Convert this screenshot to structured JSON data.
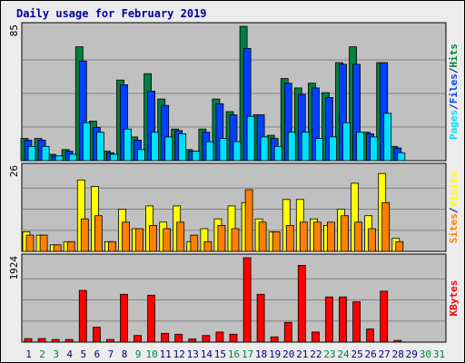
{
  "chart_data": {
    "type": "bar",
    "title": "Daily usage for February 2019",
    "categories": [
      "1",
      "2",
      "3",
      "4",
      "5",
      "6",
      "7",
      "8",
      "9",
      "10",
      "11",
      "12",
      "13",
      "14",
      "15",
      "16",
      "17",
      "18",
      "19",
      "20",
      "21",
      "22",
      "23",
      "24",
      "25",
      "26",
      "27",
      "28",
      "29",
      "30",
      "31"
    ],
    "weekend_days": [
      2,
      3,
      9,
      10,
      16,
      17,
      23,
      24,
      30,
      31
    ],
    "panels": [
      {
        "id": "hits",
        "ymax_label": "85",
        "ylim": [
          0,
          85
        ],
        "series": [
          {
            "name": "Hits",
            "color": "#008040",
            "values": [
              14,
              14,
              4,
              7,
              72,
              25,
              6,
              51,
              15,
              55,
              39,
              20,
              7,
              20,
              39,
              31,
              85,
              29,
              16,
              52,
              46,
              49,
              43,
              62,
              72,
              18,
              62,
              9,
              0,
              0,
              0
            ]
          },
          {
            "name": "Files",
            "color": "#0040ff",
            "values": [
              13,
              13,
              3,
              6,
              63,
              21,
              5,
              48,
              13,
              44,
              35,
              19,
              6,
              18,
              36,
              29,
              71,
              29,
              14,
              49,
              42,
              46,
              40,
              61,
              61,
              17,
              62,
              8,
              0,
              0,
              0
            ]
          },
          {
            "name": "Pages",
            "color": "#00e0ff",
            "values": [
              9,
              9,
              3,
              4,
              24,
              18,
              4,
              20,
              7,
              18,
              15,
              17,
              6,
              12,
              14,
              12,
              28,
              15,
              9,
              18,
              18,
              14,
              15,
              24,
              18,
              15,
              30,
              5,
              0,
              0,
              0
            ]
          }
        ],
        "axis_title": [
          {
            "text": "Pages",
            "color": "#00e0ff"
          },
          {
            "text": "/",
            "color": "#000080"
          },
          {
            "text": "Files",
            "color": "#0040ff"
          },
          {
            "text": "/",
            "color": "#000080"
          },
          {
            "text": "Hits",
            "color": "#008040"
          }
        ]
      },
      {
        "id": "visits",
        "ymax_label": "26",
        "ylim": [
          0,
          26
        ],
        "series": [
          {
            "name": "Visits",
            "color": "#ffff00",
            "values": [
              6,
              5,
              2,
              3,
              22,
              20,
              3,
              13,
              7,
              14,
              9,
              14,
              3,
              7,
              10,
              14,
              15,
              10,
              6,
              16,
              16,
              10,
              8,
              13,
              21,
              11,
              24,
              4,
              0,
              0,
              0
            ]
          },
          {
            "name": "Sites",
            "color": "#ff8000",
            "values": [
              5,
              5,
              2,
              3,
              10,
              11,
              3,
              9,
              7,
              8,
              7,
              9,
              5,
              3,
              8,
              7,
              19,
              9,
              6,
              8,
              9,
              9,
              9,
              11,
              9,
              7,
              15,
              3,
              0,
              0,
              0
            ]
          }
        ],
        "axis_title": [
          {
            "text": "Sites",
            "color": "#ff8000"
          },
          {
            "text": "/",
            "color": "#000080"
          },
          {
            "text": "Visits",
            "color": "#ffff00"
          }
        ]
      },
      {
        "id": "kbytes",
        "ymax_label": "1924",
        "ylim": [
          0,
          1924
        ],
        "series": [
          {
            "name": "KBytes",
            "color": "#ff0000",
            "values": [
              80,
              80,
              60,
              60,
              1180,
              340,
              60,
              1090,
              150,
              1070,
              200,
              180,
              70,
              150,
              230,
              180,
              1924,
              1090,
              120,
              450,
              1750,
              230,
              1030,
              1030,
              920,
              300,
              1160,
              40,
              0,
              0,
              0
            ]
          }
        ],
        "axis_title": [
          {
            "text": "KBytes",
            "color": "#ff0000"
          }
        ]
      }
    ],
    "colors": {
      "background": "#c0c0c0",
      "frame_background": "#ececec",
      "title": "#0000a0",
      "weekday_label": "#000080",
      "weekend_label": "#008040"
    }
  }
}
